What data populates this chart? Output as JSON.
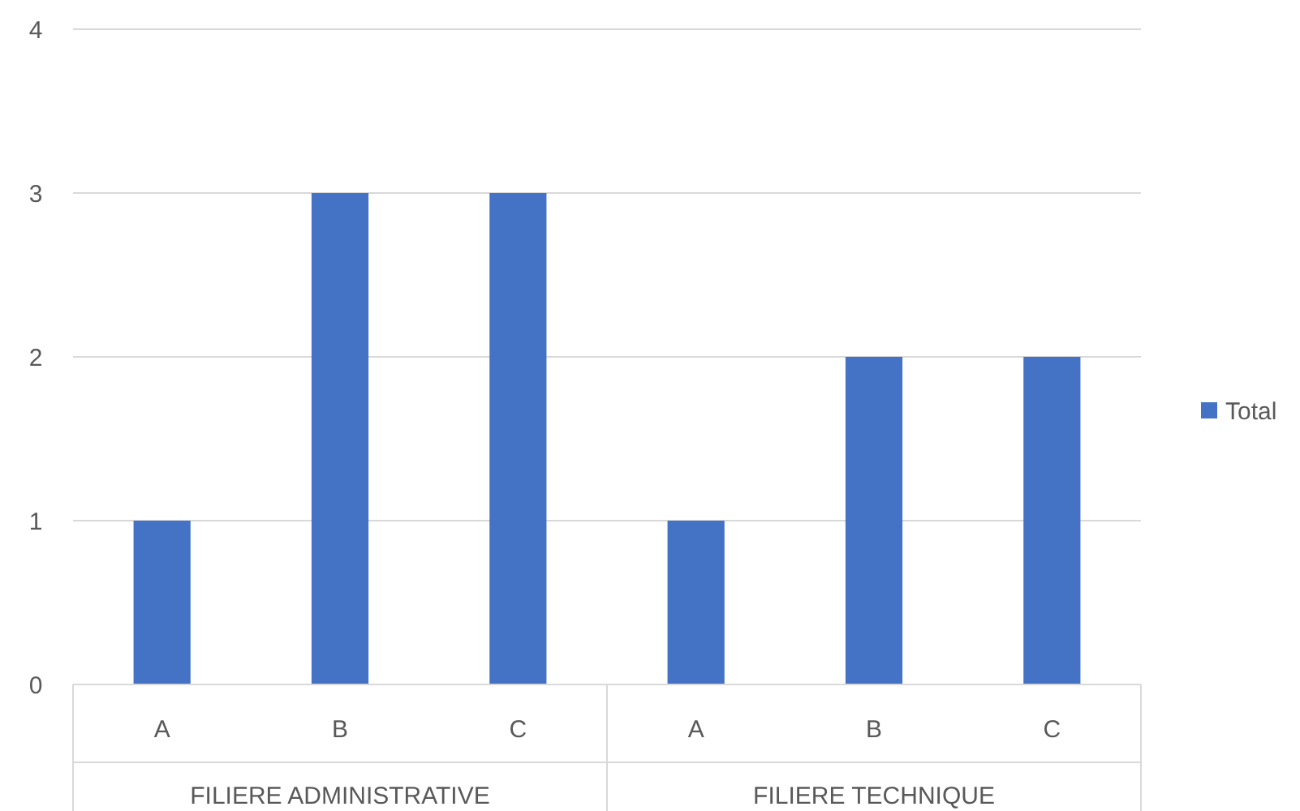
{
  "chart_data": {
    "type": "bar",
    "categories": [
      "A",
      "B",
      "C",
      "A",
      "B",
      "C"
    ],
    "series": [
      {
        "name": "Total",
        "color": "#4472c4",
        "values": [
          1,
          3,
          3,
          1,
          2,
          2
        ]
      }
    ],
    "ylim": [
      0,
      4
    ],
    "yticks": [
      0,
      1,
      2,
      3,
      4
    ],
    "grid": "y",
    "legend": "right",
    "annotations": [
      "FILIERE ADMINISTRATIVE",
      "FILIERE TECHNIQUE"
    ]
  }
}
